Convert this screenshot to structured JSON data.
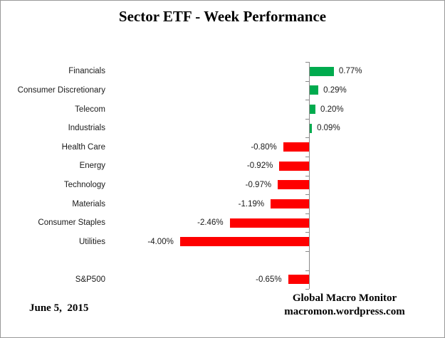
{
  "title": "Sector ETF - Week Performance",
  "footer": {
    "date": "June 5,  2015",
    "source_line1": "Global Macro Monitor",
    "source_line2": "macromon.wordpress.com"
  },
  "chart_data": {
    "type": "bar",
    "orientation": "horizontal",
    "title": "Sector ETF - Week Performance",
    "categories": [
      "Financials",
      "Consumer Discretionary",
      "Telecom",
      "Industrials",
      "Health Care",
      "Energy",
      "Technology",
      "Materials",
      "Consumer Staples",
      "Utilities",
      "",
      "S&P500"
    ],
    "values": [
      0.77,
      0.29,
      0.2,
      0.09,
      -0.8,
      -0.92,
      -0.97,
      -1.19,
      -2.46,
      -4.0,
      null,
      -0.65
    ],
    "value_labels": [
      "0.77%",
      "0.29%",
      "0.20%",
      "0.09%",
      "-0.80%",
      "-0.92%",
      "-0.97%",
      "-1.19%",
      "-2.46%",
      "-4.00%",
      "",
      "-0.65%"
    ],
    "positive_color": "#00AB4E",
    "negative_color": "#FE0000",
    "axis_color": "#898989",
    "text_color": "#1a1a1a",
    "xlim": [
      -4.5,
      1.2
    ],
    "grid": false,
    "legend": false
  }
}
